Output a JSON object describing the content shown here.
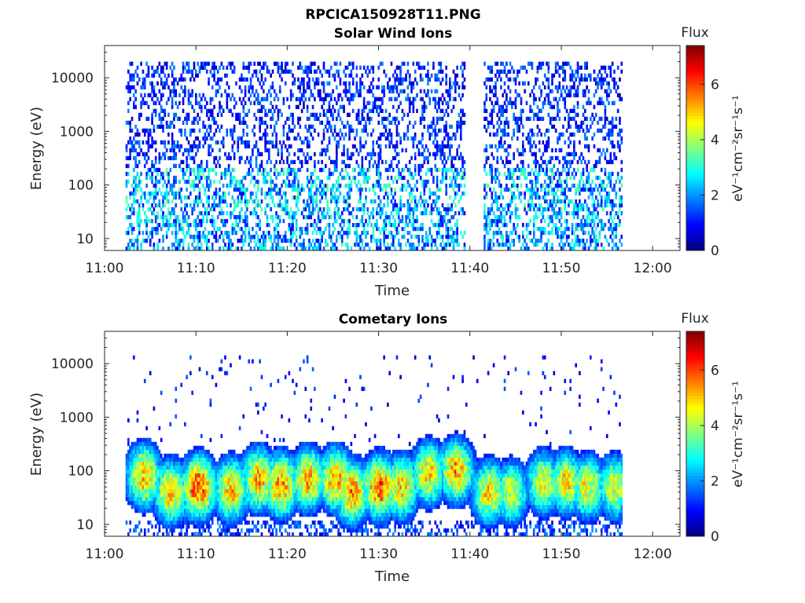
{
  "figure": {
    "filename": "RPCICA150928T11.PNG"
  },
  "chart_data": [
    {
      "type": "heatmap",
      "title": "Solar Wind Ions",
      "xlabel": "Time",
      "ylabel": "Energy (eV)",
      "x_ticks": [
        "11:00",
        "11:10",
        "11:20",
        "11:30",
        "11:40",
        "11:50",
        "12:00"
      ],
      "xlim": [
        "11:00",
        "12:03"
      ],
      "y_scale": "log",
      "y_ticks": [
        10,
        100,
        1000,
        10000
      ],
      "y_tick_labels": [
        "10",
        "100",
        "1000",
        "10000"
      ],
      "ylim": [
        6,
        40000
      ],
      "data_time_range": [
        "11:02",
        "11:57"
      ],
      "data_gap": [
        "11:39.5",
        "11:41.5"
      ],
      "colorbar": {
        "label": "Flux",
        "units": "eV⁻¹cm⁻²sr⁻¹s⁻¹",
        "range": [
          0,
          7.4
        ],
        "ticks": [
          "0",
          "2",
          "4",
          "6"
        ],
        "colormap": "jet"
      },
      "description_features": {
        "sparse_high_energy_flux": "mostly 0.5-2 (dark blue) across 200-20000 eV",
        "low_energy_band": "flux 1-3.5 between 6-200 eV"
      }
    },
    {
      "type": "heatmap",
      "title": "Cometary Ions",
      "xlabel": "Time",
      "ylabel": "Energy (eV)",
      "x_ticks": [
        "11:00",
        "11:10",
        "11:20",
        "11:30",
        "11:40",
        "11:50",
        "12:00"
      ],
      "xlim": [
        "11:00",
        "12:03"
      ],
      "y_scale": "log",
      "y_ticks": [
        10,
        100,
        1000,
        10000
      ],
      "y_tick_labels": [
        "10",
        "100",
        "1000",
        "10000"
      ],
      "ylim": [
        6,
        40000
      ],
      "data_time_range": [
        "11:02",
        "11:57"
      ],
      "colorbar": {
        "label": "Flux",
        "units": "eV⁻¹cm⁻²sr⁻¹s⁻¹",
        "range": [
          0,
          7.4
        ],
        "ticks": [
          "0",
          "2",
          "4",
          "6"
        ],
        "colormap": "jet"
      },
      "bursts": [
        {
          "t": 11.07,
          "peak_E": 80,
          "peak_flux": 5.3
        },
        {
          "t": 11.12,
          "peak_E": 40,
          "peak_flux": 5.1
        },
        {
          "t": 11.17,
          "peak_E": 50,
          "peak_flux": 6.1
        },
        {
          "t": 11.23,
          "peak_E": 45,
          "peak_flux": 5.1
        },
        {
          "t": 11.28,
          "peak_E": 70,
          "peak_flux": 5.3
        },
        {
          "t": 11.32,
          "peak_E": 55,
          "peak_flux": 5.6
        },
        {
          "t": 11.37,
          "peak_E": 70,
          "peak_flux": 5.3
        },
        {
          "t": 11.42,
          "peak_E": 70,
          "peak_flux": 5.4
        },
        {
          "t": 11.45,
          "peak_E": 40,
          "peak_flux": 5.5
        },
        {
          "t": 11.5,
          "peak_E": 50,
          "peak_flux": 5.9
        },
        {
          "t": 11.54,
          "peak_E": 50,
          "peak_flux": 5.1
        },
        {
          "t": 11.59,
          "peak_E": 90,
          "peak_flux": 5.0
        },
        {
          "t": 11.64,
          "peak_E": 100,
          "peak_flux": 5.4
        },
        {
          "t": 11.7,
          "peak_E": 40,
          "peak_flux": 5.0
        },
        {
          "t": 11.74,
          "peak_E": 40,
          "peak_flux": 4.5
        },
        {
          "t": 11.8,
          "peak_E": 60,
          "peak_flux": 4.6
        },
        {
          "t": 11.84,
          "peak_E": 60,
          "peak_flux": 4.8
        },
        {
          "t": 11.88,
          "peak_E": 50,
          "peak_flux": 4.8
        },
        {
          "t": 11.93,
          "peak_E": 50,
          "peak_flux": 4.5
        }
      ]
    }
  ]
}
